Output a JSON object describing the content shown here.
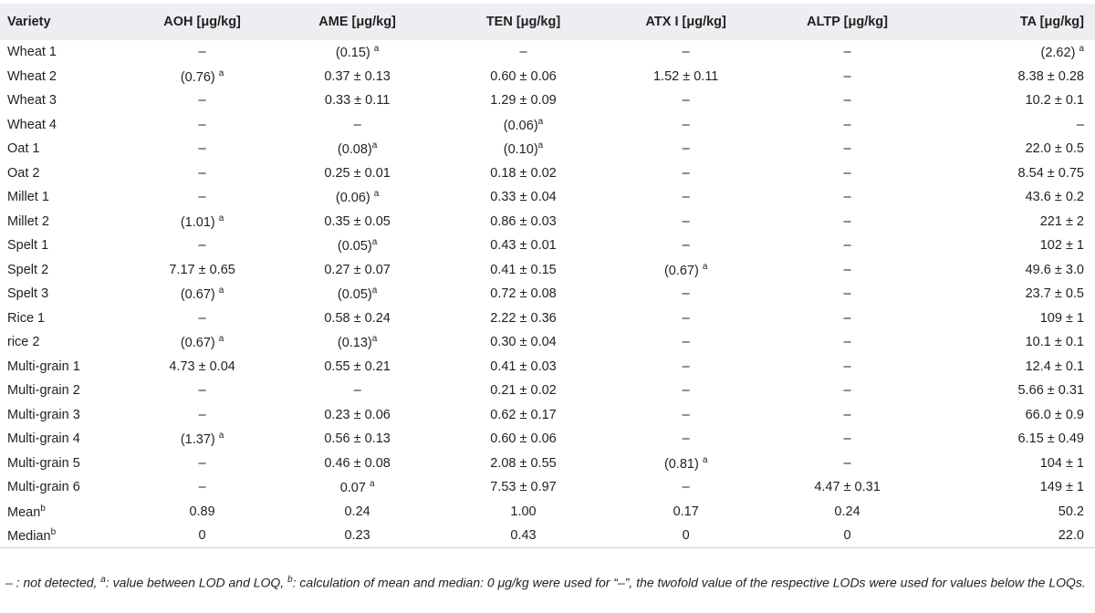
{
  "table": {
    "headers": [
      "Variety",
      "AOH [μg/kg]",
      "AME [μg/kg]",
      "TEN [μg/kg]",
      "ATX I [μg/kg]",
      "ALTP [μg/kg]",
      "TA [μg/kg]"
    ],
    "rows": [
      [
        "Wheat 1",
        "–",
        "(0.15) ^a",
        "–",
        "–",
        "–",
        "(2.62) ^a"
      ],
      [
        "Wheat 2",
        "(0.76) ^a",
        "0.37 ± 0.13",
        "0.60 ± 0.06",
        "1.52 ± 0.11",
        "–",
        "8.38 ± 0.28"
      ],
      [
        "Wheat 3",
        "–",
        "0.33 ± 0.11",
        "1.29 ± 0.09",
        "–",
        "–",
        "10.2 ± 0.1"
      ],
      [
        "Wheat 4",
        "–",
        "–",
        "(0.06)^a",
        "–",
        "–",
        "–"
      ],
      [
        "Oat 1",
        "–",
        "(0.08)^a",
        "(0.10)^a",
        "–",
        "–",
        "22.0 ± 0.5"
      ],
      [
        "Oat 2",
        "–",
        "0.25 ± 0.01",
        "0.18 ± 0.02",
        "–",
        "–",
        "8.54 ± 0.75"
      ],
      [
        "Millet 1",
        "–",
        "(0.06) ^a",
        "0.33 ± 0.04",
        "–",
        "–",
        "43.6 ± 0.2"
      ],
      [
        "Millet 2",
        "(1.01) ^a",
        "0.35 ± 0.05",
        "0.86 ± 0.03",
        "–",
        "–",
        "221 ± 2"
      ],
      [
        "Spelt 1",
        "–",
        "(0.05)^a",
        "0.43 ± 0.01",
        "–",
        "–",
        "102 ± 1"
      ],
      [
        "Spelt 2",
        "7.17 ± 0.65",
        "0.27 ± 0.07",
        "0.41 ± 0.15",
        "(0.67) ^a",
        "–",
        "49.6 ± 3.0"
      ],
      [
        "Spelt 3",
        "(0.67) ^a",
        "(0.05)^a",
        "0.72 ± 0.08",
        "–",
        "–",
        "23.7 ± 0.5"
      ],
      [
        "Rice 1",
        "–",
        "0.58 ± 0.24",
        "2.22 ± 0.36",
        "–",
        "–",
        "109 ± 1"
      ],
      [
        "rice 2",
        "(0.67) ^a",
        "(0.13)^a",
        "0.30 ± 0.04",
        "–",
        "–",
        "10.1 ± 0.1"
      ],
      [
        "Multi-grain 1",
        "4.73 ± 0.04",
        "0.55 ± 0.21",
        "0.41 ± 0.03",
        "–",
        "–",
        "12.4 ± 0.1"
      ],
      [
        "Multi-grain 2",
        "–",
        "–",
        "0.21 ± 0.02",
        "–",
        "–",
        "5.66 ± 0.31"
      ],
      [
        "Multi-grain 3",
        "–",
        "0.23 ± 0.06",
        "0.62 ± 0.17",
        "–",
        "–",
        "66.0 ± 0.9"
      ],
      [
        "Multi-grain 4",
        "(1.37) ^a",
        "0.56 ± 0.13",
        "0.60 ± 0.06",
        "–",
        "–",
        "6.15 ± 0.49"
      ],
      [
        "Multi-grain 5",
        "–",
        "0.46 ± 0.08",
        "2.08 ± 0.55",
        "(0.81) ^a",
        "–",
        "104 ± 1"
      ],
      [
        "Multi-grain 6",
        "–",
        "0.07 ^a",
        "7.53 ± 0.97",
        "–",
        "4.47 ± 0.31",
        "149 ± 1"
      ],
      [
        "Mean^b",
        "0.89",
        "0.24",
        "1.00",
        "0.17",
        "0.24",
        "50.2"
      ],
      [
        "Median^b",
        "0",
        "0.23",
        "0.43",
        "0",
        "0",
        "22.0"
      ]
    ]
  },
  "footnote": {
    "dash_note": "– : not detected,",
    "a_mark": "a",
    "a_note": ": value between LOD and LOQ,",
    "b_mark": "b",
    "b_note": ": calculation of mean and median: 0 μg/kg were used for “–”, the twofold value of the respective LODs were used for values below the LOQs."
  }
}
